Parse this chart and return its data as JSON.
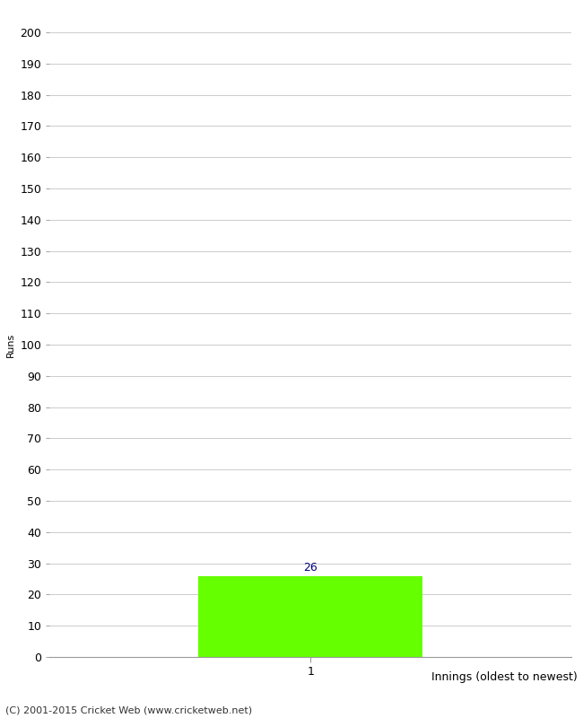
{
  "bar_values": [
    26
  ],
  "bar_positions": [
    1
  ],
  "bar_color": "#66ff00",
  "bar_width": 0.6,
  "ylim": [
    0,
    200
  ],
  "yticks": [
    0,
    10,
    20,
    30,
    40,
    50,
    60,
    70,
    80,
    90,
    100,
    110,
    120,
    130,
    140,
    150,
    160,
    170,
    180,
    190,
    200
  ],
  "ylabel": "Runs",
  "xlabel": "Innings (oldest to newest)",
  "xtick_labels": [
    "1"
  ],
  "xlim": [
    0.3,
    1.7
  ],
  "footer": "(C) 2001-2015 Cricket Web (www.cricketweb.net)",
  "annotation_color": "#000080",
  "grid_color": "#cccccc",
  "background_color": "#ffffff",
  "font_size": 9,
  "ylabel_fontsize": 8,
  "xlabel_fontsize": 9,
  "footer_fontsize": 8
}
